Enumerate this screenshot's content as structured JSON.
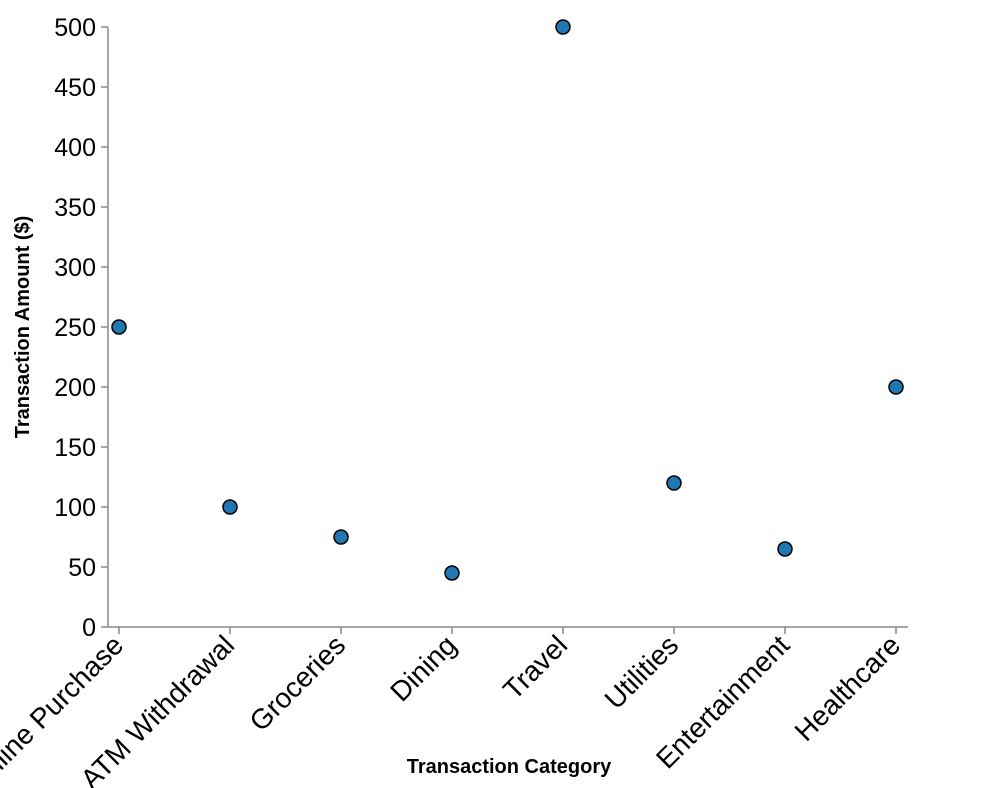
{
  "chart_data": {
    "type": "scatter",
    "title": "",
    "xlabel": "Transaction Category",
    "ylabel": "Transaction Amount ($)",
    "categories": [
      "Online Purchase",
      "ATM Withdrawal",
      "Groceries",
      "Dining",
      "Travel",
      "Utilities",
      "Entertainment",
      "Healthcare"
    ],
    "values": [
      250,
      100,
      75,
      45,
      500,
      120,
      65,
      200
    ],
    "ylim": [
      0,
      500
    ],
    "yticks": [
      "0",
      "50",
      "100",
      "150",
      "200",
      "250",
      "300",
      "350",
      "400",
      "450",
      "500"
    ],
    "grid": false,
    "legend": "none",
    "point_color": "#1f77b4"
  }
}
